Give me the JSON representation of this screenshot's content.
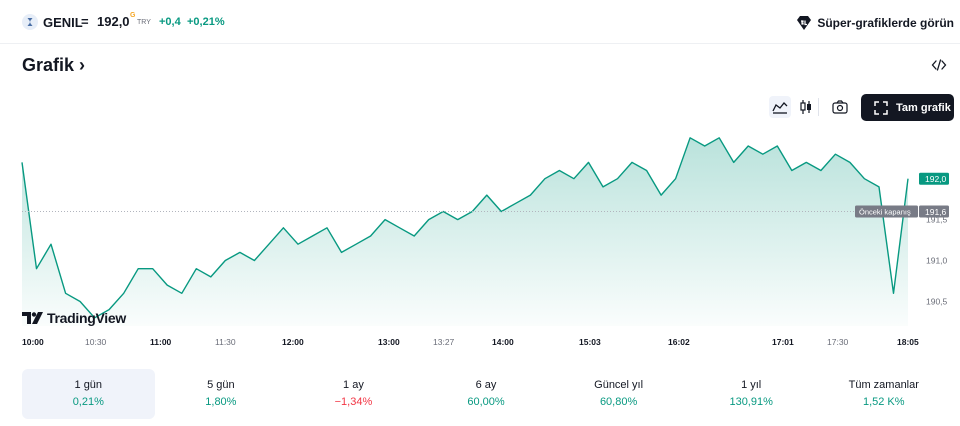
{
  "symbol": {
    "name": "GENIL",
    "separator": "=",
    "price": "192,0",
    "price_flag": "G",
    "currency": "TRY",
    "change": "+0,4",
    "change_percent": "+0,21%",
    "logo_icon": "symbol-logo-icon"
  },
  "promo": {
    "label": "Süper-grafiklerde görün",
    "icon": "super-charts-icon"
  },
  "section": {
    "title": "Grafik",
    "chevron": "›",
    "embed_icon": "code-embed-icon"
  },
  "toolbar": {
    "area_icon": "area-chart-icon",
    "candle_icon": "candlestick-icon",
    "snapshot_icon": "camera-icon",
    "fullscreen_label": "Tam grafik",
    "fullscreen_icon": "fullscreen-icon"
  },
  "watermark": "TradingView",
  "colors": {
    "line": "#089981",
    "positive": "#089981",
    "negative": "#f23645",
    "dark": "#131722",
    "prev_close_badge": "#787b86"
  },
  "chart_data": {
    "type": "area",
    "x_ticks": [
      {
        "label": "10:00",
        "bold": true
      },
      {
        "label": "10:30",
        "bold": false
      },
      {
        "label": "11:00",
        "bold": true
      },
      {
        "label": "11:30",
        "bold": false
      },
      {
        "label": "12:00",
        "bold": true
      },
      {
        "label": "13:00",
        "bold": true
      },
      {
        "label": "13:27",
        "bold": false
      },
      {
        "label": "14:00",
        "bold": true
      },
      {
        "label": "15:03",
        "bold": true
      },
      {
        "label": "16:02",
        "bold": true
      },
      {
        "label": "17:01",
        "bold": true
      },
      {
        "label": "17:30",
        "bold": false
      },
      {
        "label": "18:05",
        "bold": true
      }
    ],
    "y_ticks": [
      "191,5",
      "191,0",
      "190,5"
    ],
    "ylim": [
      190.2,
      192.4
    ],
    "last_price": 192.0,
    "last_price_label": "192,0",
    "previous_close": 191.6,
    "previous_close_label": "Önceki kapanış",
    "previous_close_value": "191,6",
    "values": [
      192.2,
      190.9,
      191.2,
      190.6,
      190.5,
      190.3,
      190.4,
      190.6,
      190.9,
      190.9,
      190.7,
      190.6,
      190.9,
      190.8,
      191.0,
      191.1,
      191.0,
      191.2,
      191.4,
      191.2,
      191.3,
      191.4,
      191.1,
      191.2,
      191.3,
      191.5,
      191.4,
      191.3,
      191.5,
      191.6,
      191.5,
      191.6,
      191.8,
      191.6,
      191.7,
      191.8,
      192.0,
      192.1,
      192.0,
      192.2,
      191.9,
      192.0,
      192.2,
      192.1,
      191.8,
      192.0,
      192.5,
      192.4,
      192.5,
      192.2,
      192.4,
      192.3,
      192.4,
      192.1,
      192.2,
      192.1,
      192.3,
      192.2,
      192.0,
      191.9,
      190.6,
      192.0
    ]
  },
  "ranges": [
    {
      "label": "1 gün",
      "value": "0,21%",
      "sign": "pos",
      "selected": true
    },
    {
      "label": "5 gün",
      "value": "1,80%",
      "sign": "pos",
      "selected": false
    },
    {
      "label": "1 ay",
      "value": "−1,34%",
      "sign": "neg",
      "selected": false
    },
    {
      "label": "6 ay",
      "value": "60,00%",
      "sign": "pos",
      "selected": false
    },
    {
      "label": "Güncel yıl",
      "value": "60,80%",
      "sign": "pos",
      "selected": false
    },
    {
      "label": "1 yıl",
      "value": "130,91%",
      "sign": "pos",
      "selected": false
    },
    {
      "label": "Tüm zamanlar",
      "value": "1,52 K%",
      "sign": "pos",
      "selected": false
    }
  ]
}
